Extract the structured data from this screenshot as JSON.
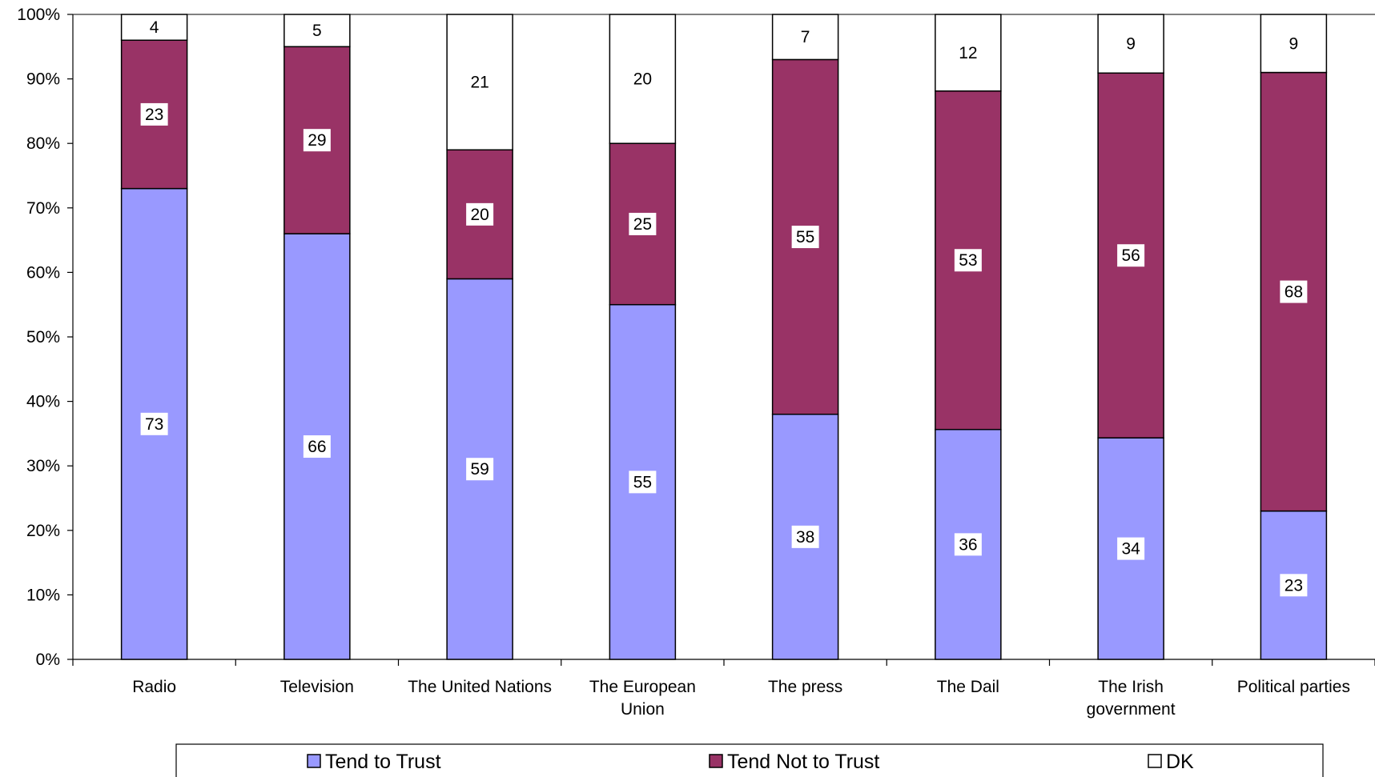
{
  "chart_data": {
    "type": "bar",
    "stacked": true,
    "percent_stacked": true,
    "categories": [
      [
        "Radio"
      ],
      [
        "Television"
      ],
      [
        "The United Nations"
      ],
      [
        "The European",
        "Union"
      ],
      [
        "The press"
      ],
      [
        "The Dail"
      ],
      [
        "The Irish",
        "government"
      ],
      [
        "Political parties"
      ]
    ],
    "series": [
      {
        "name": "Tend to Trust",
        "color": "#9999ff",
        "values": [
          73,
          66,
          59,
          55,
          38,
          36,
          34,
          23
        ]
      },
      {
        "name": "Tend Not to Trust",
        "color": "#993366",
        "values": [
          23,
          29,
          20,
          25,
          55,
          53,
          56,
          68
        ]
      },
      {
        "name": "DK",
        "color": "#ffffff",
        "values": [
          4,
          5,
          21,
          20,
          7,
          12,
          9,
          9
        ]
      }
    ],
    "y_ticks": [
      "0%",
      "10%",
      "20%",
      "30%",
      "40%",
      "50%",
      "60%",
      "70%",
      "80%",
      "90%",
      "100%"
    ],
    "ylim": [
      0,
      100
    ],
    "grid": false,
    "legend_position": "bottom"
  }
}
